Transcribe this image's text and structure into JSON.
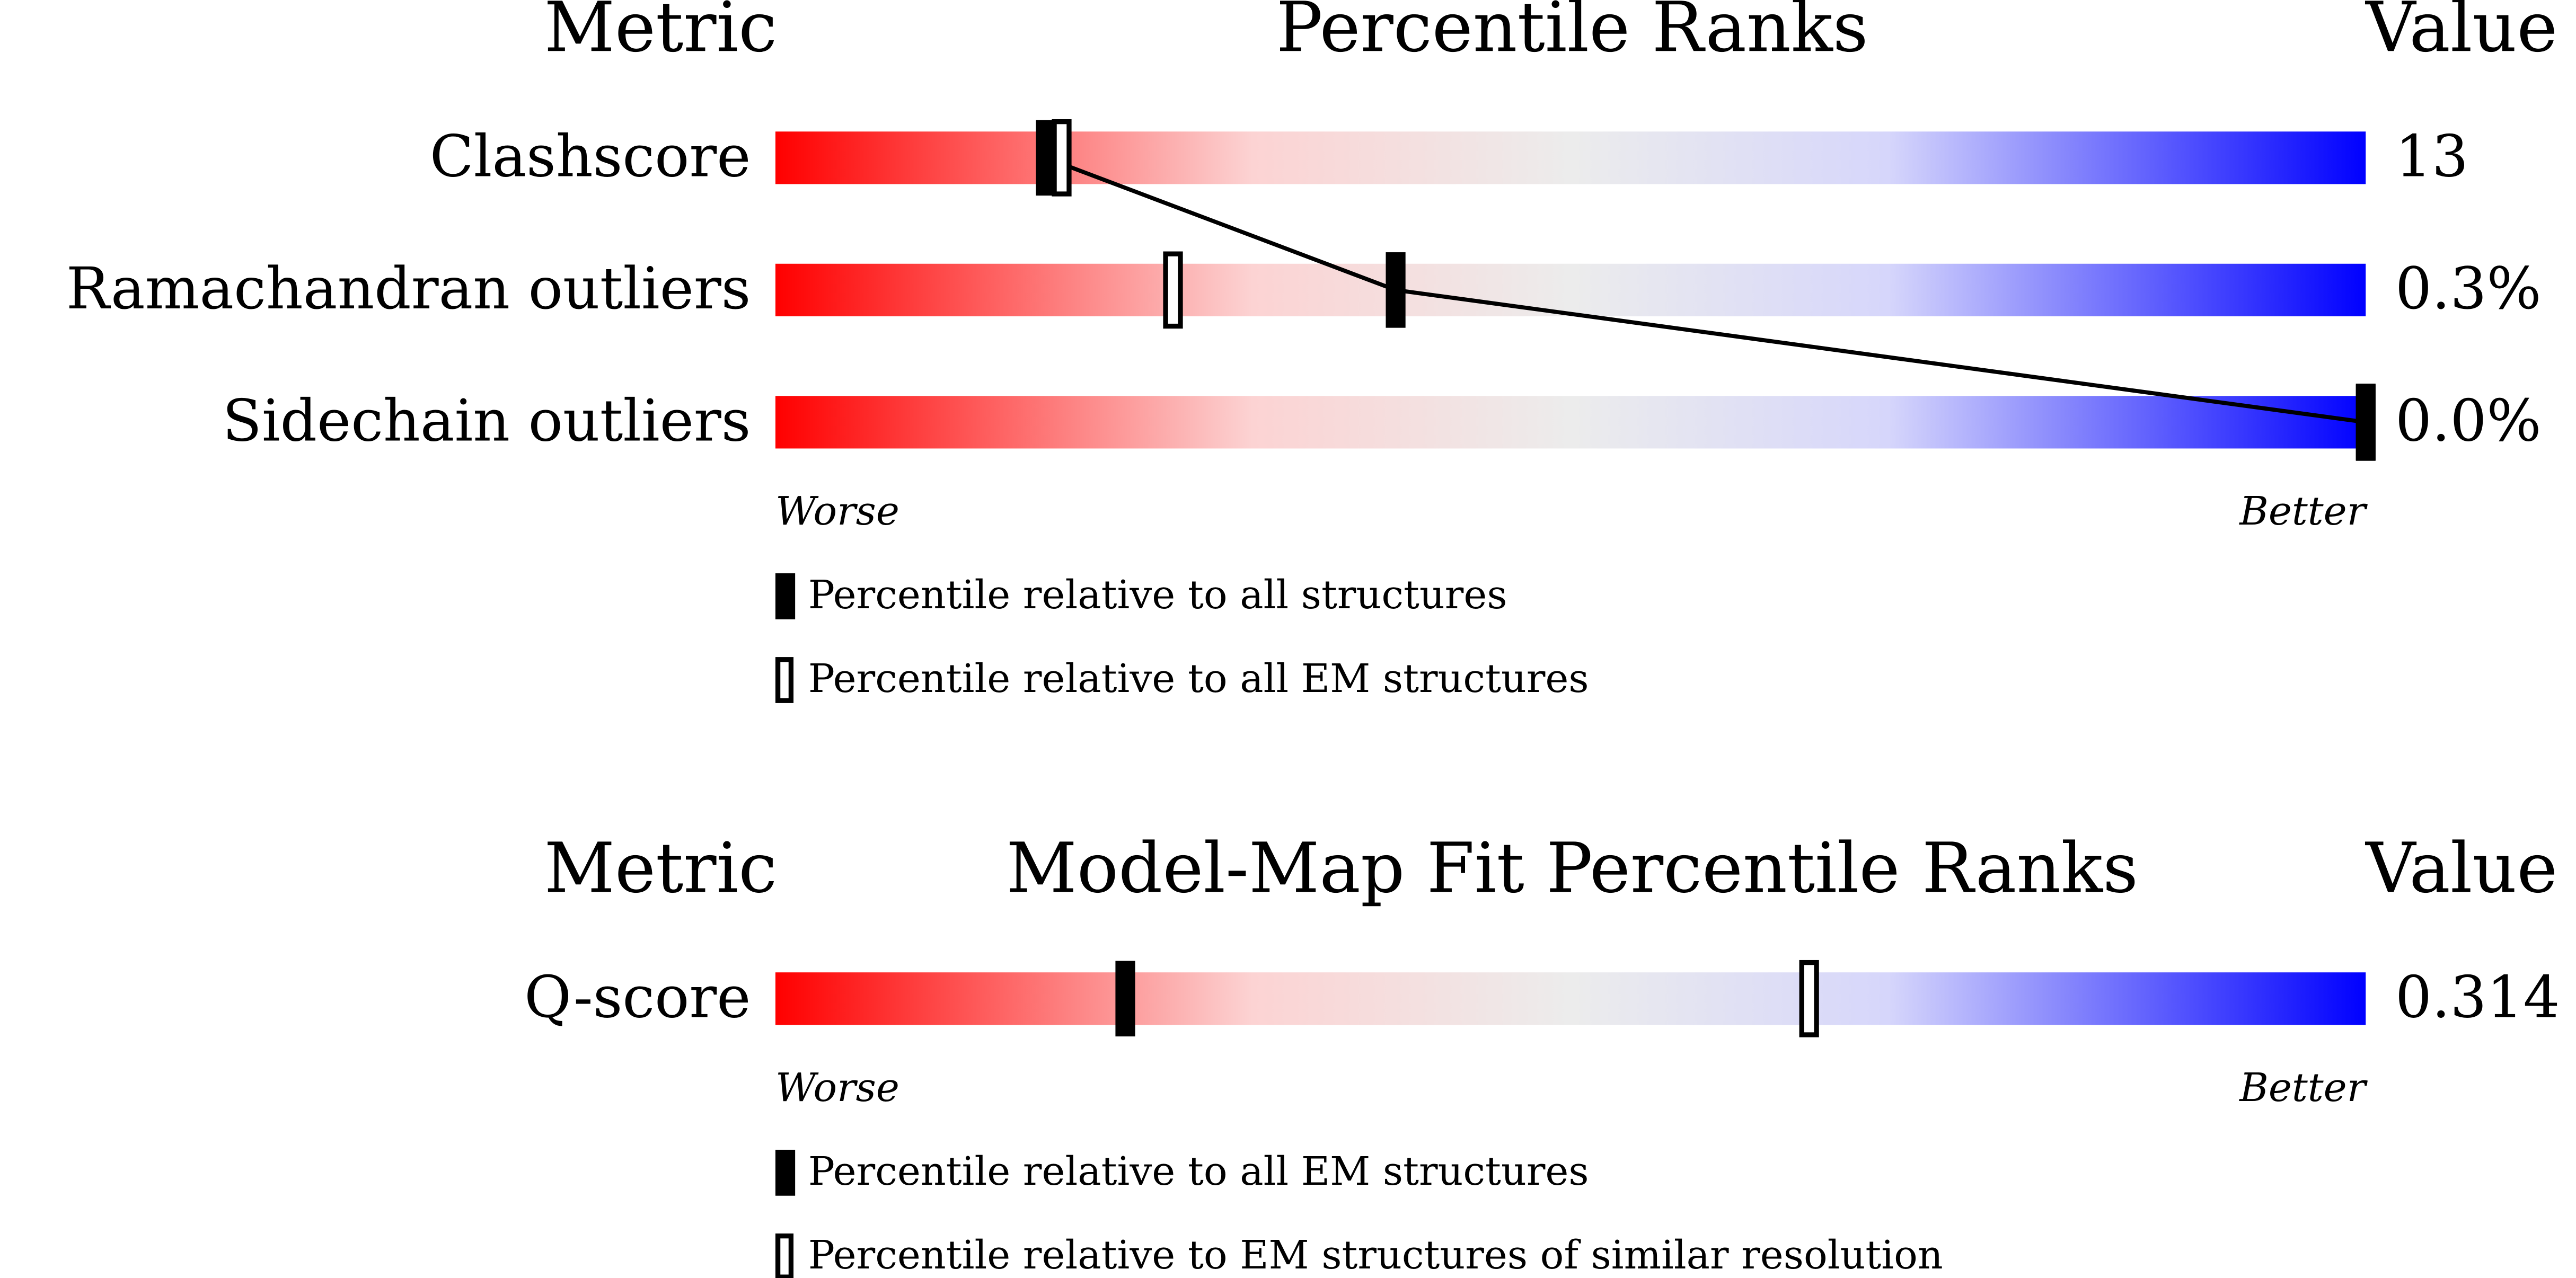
{
  "chart_data": [
    {
      "type": "percentile",
      "header": {
        "metric": "Metric",
        "title": "Percentile Ranks",
        "value": "Value"
      },
      "categories": [
        "Clashscore",
        "Ramachandran outliers",
        "Sidechain outliers"
      ],
      "printed_values": [
        "13",
        "0.3%",
        "0.0%"
      ],
      "series": [
        {
          "name": "Percentile relative to all structures",
          "style": "filled",
          "values": [
            17,
            39,
            100
          ]
        },
        {
          "name": "Percentile relative to all EM structures",
          "style": "open",
          "values": [
            18,
            25,
            100
          ]
        }
      ],
      "xlim": [
        0,
        100
      ],
      "worse": "Worse",
      "better": "Better"
    },
    {
      "type": "percentile",
      "header": {
        "metric": "Metric",
        "title": "Model-Map Fit Percentile Ranks",
        "value": "Value"
      },
      "categories": [
        "Q-score"
      ],
      "printed_values": [
        "0.314"
      ],
      "series": [
        {
          "name": "Percentile relative to all EM structures",
          "style": "filled",
          "values": [
            22
          ]
        },
        {
          "name": "Percentile relative to EM structures of similar resolution",
          "style": "open",
          "values": [
            65
          ]
        }
      ],
      "xlim": [
        0,
        100
      ],
      "worse": "Worse",
      "better": "Better"
    }
  ]
}
